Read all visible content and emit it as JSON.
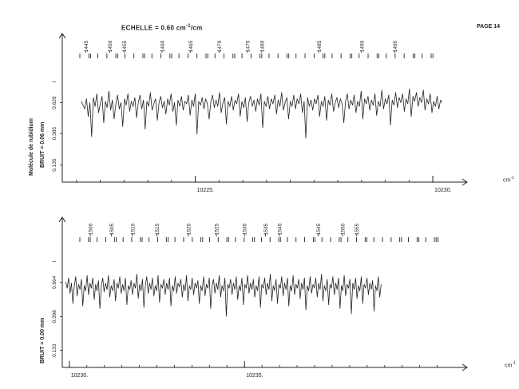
{
  "header": {
    "scale_label": "ECHELLE = 0.60 cm",
    "scale_sup": "-1",
    "scale_unit_suffix": "/cm",
    "page_label": "PAGE 14"
  },
  "side_labels": {
    "molecule": "Molécule de rubidium",
    "noise_top": "BRUIT = 0.06 mm",
    "noise_bottom": "BRUIT = 0.00 mm"
  },
  "x_unit": {
    "base": "cm",
    "sup": "-1"
  },
  "colors": {
    "ink": "#222222",
    "paper": "#ffffff"
  },
  "chart_data": [
    {
      "type": "line",
      "xlim": [
        10222.2,
        10230.1
      ],
      "ylim": [
        0,
        1
      ],
      "xticks": [
        10225,
        10230
      ],
      "xtick_labels": [
        "10225.",
        "10230."
      ],
      "yticks": [
        0.135,
        0.385,
        0.629
      ],
      "ytick_labels": [
        "0.135",
        "0.385",
        "0.629"
      ],
      "y_marker": "I",
      "line_numbers": [
        {
          "x": 10222.7,
          "label": "1445"
        },
        {
          "x": 10223.2,
          "label": "1450"
        },
        {
          "x": 10223.5,
          "label": "1455"
        },
        {
          "x": 10224.3,
          "label": "1460"
        },
        {
          "x": 10224.9,
          "label": "1465"
        },
        {
          "x": 10225.5,
          "label": "1470"
        },
        {
          "x": 10226.1,
          "label": "1475"
        },
        {
          "x": 10226.4,
          "label": "1480"
        },
        {
          "x": 10227.6,
          "label": "1485"
        },
        {
          "x": 10228.5,
          "label": "1490"
        },
        {
          "x": 10229.2,
          "label": "1495"
        }
      ],
      "mark_groups": [
        "I",
        "II",
        "I",
        "I",
        "II",
        "I",
        "I",
        "II",
        "I",
        "I",
        "II",
        "I",
        "I",
        "I",
        "II",
        "I",
        "I",
        "II",
        "I",
        "I",
        "II",
        "I",
        "I",
        "II",
        "I",
        "I",
        "I",
        "II",
        "I",
        "I",
        "II",
        "I",
        "I",
        "II",
        "I",
        "I",
        "I",
        "II",
        "I",
        "II"
      ],
      "series": [
        {
          "x_start": 10222.6,
          "x_end": 10230.2,
          "values": [
            0.64,
            0.61,
            0.58,
            0.66,
            0.52,
            0.63,
            0.36,
            0.67,
            0.6,
            0.7,
            0.55,
            0.62,
            0.68,
            0.47,
            0.64,
            0.59,
            0.72,
            0.57,
            0.65,
            0.5,
            0.62,
            0.69,
            0.58,
            0.63,
            0.44,
            0.66,
            0.61,
            0.7,
            0.56,
            0.64,
            0.6,
            0.67,
            0.51,
            0.63,
            0.69,
            0.58,
            0.65,
            0.42,
            0.64,
            0.6,
            0.71,
            0.57,
            0.62,
            0.66,
            0.49,
            0.63,
            0.68,
            0.59,
            0.64,
            0.54,
            0.66,
            0.61,
            0.7,
            0.56,
            0.63,
            0.45,
            0.65,
            0.6,
            0.68,
            0.57,
            0.64,
            0.62,
            0.69,
            0.53,
            0.65,
            0.6,
            0.7,
            0.38,
            0.64,
            0.61,
            0.67,
            0.58,
            0.66,
            0.62,
            0.5,
            0.64,
            0.69,
            0.59,
            0.65,
            0.6,
            0.71,
            0.55,
            0.63,
            0.67,
            0.46,
            0.64,
            0.6,
            0.68,
            0.57,
            0.65,
            0.62,
            0.7,
            0.52,
            0.64,
            0.59,
            0.67,
            0.48,
            0.63,
            0.68,
            0.6,
            0.65,
            0.56,
            0.66,
            0.61,
            0.7,
            0.43,
            0.64,
            0.6,
            0.68,
            0.58,
            0.66,
            0.62,
            0.69,
            0.54,
            0.65,
            0.6,
            0.71,
            0.57,
            0.63,
            0.67,
            0.5,
            0.64,
            0.6,
            0.69,
            0.58,
            0.66,
            0.62,
            0.7,
            0.55,
            0.64,
            0.35,
            0.67,
            0.6,
            0.65,
            0.57,
            0.66,
            0.62,
            0.69,
            0.52,
            0.64,
            0.6,
            0.68,
            0.49,
            0.65,
            0.61,
            0.7,
            0.56,
            0.63,
            0.67,
            0.59,
            0.66,
            0.62,
            0.47,
            0.64,
            0.7,
            0.58,
            0.65,
            0.61,
            0.69,
            0.55,
            0.64,
            0.6,
            0.72,
            0.5,
            0.66,
            0.62,
            0.68,
            0.57,
            0.65,
            0.61,
            0.7,
            0.53,
            0.64,
            0.6,
            0.73,
            0.58,
            0.66,
            0.62,
            0.69,
            0.45,
            0.65,
            0.61,
            0.71,
            0.59,
            0.67,
            0.63,
            0.7,
            0.56,
            0.66,
            0.62,
            0.74,
            0.52,
            0.68,
            0.64,
            0.71,
            0.6,
            0.67,
            0.63,
            0.73,
            0.57,
            0.66,
            0.62,
            0.7,
            0.55,
            0.64,
            0.6,
            0.68,
            0.58,
            0.65,
            0.63
          ]
        }
      ]
    },
    {
      "type": "line",
      "xlim": [
        10229.8,
        10240.6
      ],
      "ylim": [
        0,
        1
      ],
      "xticks": [
        10230,
        10235
      ],
      "xtick_labels": [
        "10230.",
        "10235."
      ],
      "yticks": [
        0.133,
        0.398,
        0.664
      ],
      "ytick_labels": [
        "0.133",
        "0.398",
        "0.664"
      ],
      "y_marker": "I",
      "line_numbers": [
        {
          "x": 10230.6,
          "label": "1500"
        },
        {
          "x": 10231.2,
          "label": "1505"
        },
        {
          "x": 10231.8,
          "label": "1510"
        },
        {
          "x": 10232.5,
          "label": "1515"
        },
        {
          "x": 10233.4,
          "label": "1520"
        },
        {
          "x": 10234.2,
          "label": "1525"
        },
        {
          "x": 10235.0,
          "label": "1530"
        },
        {
          "x": 10235.6,
          "label": "1535"
        },
        {
          "x": 10236.0,
          "label": "1540"
        },
        {
          "x": 10237.1,
          "label": "1545"
        },
        {
          "x": 10237.8,
          "label": "1550"
        },
        {
          "x": 10238.2,
          "label": "1555"
        }
      ],
      "mark_groups": [
        "I",
        "II",
        "I",
        "I",
        "II",
        "I",
        "I",
        "II",
        "I",
        "I",
        "II",
        "I",
        "I",
        "I",
        "II",
        "I",
        "I",
        "II",
        "I",
        "I",
        "II",
        "I",
        "I",
        "II",
        "I",
        "I",
        "I",
        "II",
        "I",
        "I",
        "II",
        "I",
        "I",
        "II",
        "I",
        "I",
        "I",
        "II",
        "I",
        "II",
        "I",
        "III"
      ],
      "series": [
        {
          "x_start": 10229.9,
          "x_end": 10238.9,
          "values": [
            0.67,
            0.62,
            0.7,
            0.58,
            0.66,
            0.5,
            0.64,
            0.71,
            0.56,
            0.65,
            0.61,
            0.69,
            0.48,
            0.64,
            0.6,
            0.72,
            0.57,
            0.66,
            0.62,
            0.7,
            0.53,
            0.65,
            0.6,
            0.68,
            0.46,
            0.64,
            0.7,
            0.59,
            0.66,
            0.61,
            0.72,
            0.55,
            0.64,
            0.6,
            0.69,
            0.52,
            0.66,
            0.62,
            0.71,
            0.58,
            0.65,
            0.6,
            0.7,
            0.49,
            0.64,
            0.61,
            0.68,
            0.57,
            0.66,
            0.62,
            0.73,
            0.54,
            0.65,
            0.6,
            0.69,
            0.47,
            0.64,
            0.71,
            0.58,
            0.66,
            0.61,
            0.7,
            0.56,
            0.64,
            0.6,
            0.72,
            0.51,
            0.65,
            0.62,
            0.69,
            0.57,
            0.66,
            0.61,
            0.7,
            0.48,
            0.64,
            0.6,
            0.71,
            0.58,
            0.66,
            0.63,
            0.69,
            0.55,
            0.65,
            0.6,
            0.72,
            0.52,
            0.64,
            0.61,
            0.7,
            0.57,
            0.66,
            0.62,
            0.68,
            0.5,
            0.64,
            0.6,
            0.71,
            0.56,
            0.65,
            0.62,
            0.7,
            0.46,
            0.64,
            0.69,
            0.58,
            0.66,
            0.61,
            0.72,
            0.55,
            0.64,
            0.6,
            0.7,
            0.4,
            0.65,
            0.62,
            0.69,
            0.57,
            0.66,
            0.61,
            0.71,
            0.53,
            0.64,
            0.6,
            0.7,
            0.49,
            0.65,
            0.62,
            0.72,
            0.58,
            0.66,
            0.61,
            0.69,
            0.55,
            0.64,
            0.6,
            0.71,
            0.47,
            0.65,
            0.62,
            0.7,
            0.57,
            0.66,
            0.61,
            0.73,
            0.52,
            0.64,
            0.6,
            0.69,
            0.5,
            0.65,
            0.62,
            0.71,
            0.56,
            0.66,
            0.61,
            0.7,
            0.48,
            0.64,
            0.6,
            0.72,
            0.57,
            0.65,
            0.62,
            0.69,
            0.54,
            0.66,
            0.61,
            0.7,
            0.45,
            0.64,
            0.6,
            0.71,
            0.58,
            0.65,
            0.62,
            0.7,
            0.55,
            0.66,
            0.61,
            0.73,
            0.52,
            0.64,
            0.6,
            0.69,
            0.49,
            0.65,
            0.62,
            0.71,
            0.57,
            0.66,
            0.61,
            0.7,
            0.46,
            0.64,
            0.6,
            0.72,
            0.56,
            0.65,
            0.62,
            0.69,
            0.42,
            0.66,
            0.61,
            0.7,
            0.54,
            0.64,
            0.6,
            0.71,
            0.5,
            0.65,
            0.62,
            0.7,
            0.57,
            0.66,
            0.61,
            0.68,
            0.44,
            0.64,
            0.6,
            0.71,
            0.55,
            0.65
          ]
        }
      ]
    }
  ]
}
